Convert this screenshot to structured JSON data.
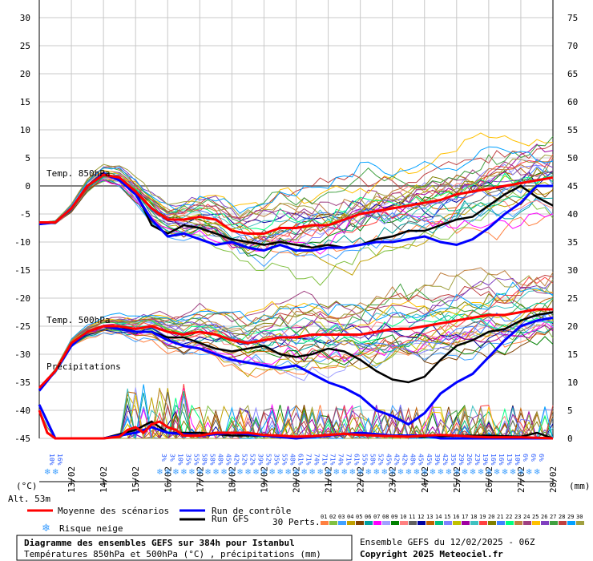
{
  "chart_data": {
    "type": "line",
    "title": "Diagramme des ensembles GEFS sur 384h pour Istanbul",
    "subtitle": "Températures 850hPa et 500hPa (°C) , précipitations (mm)",
    "run_info": "Ensemble GEFS du 12/02/2025 - 06Z",
    "copyright": "Copyright 2025 Meteociel.fr",
    "altitude": "Alt. 53m",
    "left_axis_unit": "(°C)",
    "right_axis_unit": "(mm)",
    "panel_labels": {
      "t850": "Temp. 850hPa",
      "t500": "Temp. 500hPa",
      "precip": "Précipitations"
    },
    "y_left_ticks": [
      "30",
      "25",
      "20",
      "15",
      "10",
      "5",
      "0",
      "-5",
      "-10",
      "-15",
      "-20",
      "-25",
      "-30",
      "-35",
      "-40",
      "-45"
    ],
    "y_right_ticks": [
      "75",
      "70",
      "65",
      "60",
      "55",
      "50",
      "45",
      "40",
      "35",
      "30",
      "25",
      "20",
      "15",
      "10",
      "5",
      "0"
    ],
    "ylim_left": [
      -45,
      30
    ],
    "ylim_right": [
      0,
      75
    ],
    "x_ticks": [
      "13/02",
      "14/02",
      "15/02",
      "16/02",
      "17/02",
      "18/02",
      "19/02",
      "20/02",
      "21/02",
      "22/02",
      "23/02",
      "24/02",
      "25/02",
      "26/02",
      "27/02",
      "28/02"
    ],
    "x_hours_range": [
      0,
      384
    ],
    "snow_risk": [
      {
        "h": 6,
        "pct": "10%"
      },
      {
        "h": 12,
        "pct": "16%"
      },
      {
        "h": 90,
        "pct": "3%"
      },
      {
        "h": 96,
        "pct": "3%"
      },
      {
        "h": 102,
        "pct": "10%"
      },
      {
        "h": 108,
        "pct": "35%"
      },
      {
        "h": 114,
        "pct": "55%"
      },
      {
        "h": 120,
        "pct": "58%"
      },
      {
        "h": 126,
        "pct": "58%"
      },
      {
        "h": 132,
        "pct": "48%"
      },
      {
        "h": 138,
        "pct": "45%"
      },
      {
        "h": 144,
        "pct": "42%"
      },
      {
        "h": 150,
        "pct": "52%"
      },
      {
        "h": 156,
        "pct": "52%"
      },
      {
        "h": 162,
        "pct": "39%"
      },
      {
        "h": 168,
        "pct": "52%"
      },
      {
        "h": 174,
        "pct": "35%"
      },
      {
        "h": 180,
        "pct": "55%"
      },
      {
        "h": 186,
        "pct": "48%"
      },
      {
        "h": 192,
        "pct": "61%"
      },
      {
        "h": 198,
        "pct": "71%"
      },
      {
        "h": 204,
        "pct": "74%"
      },
      {
        "h": 210,
        "pct": "71%"
      },
      {
        "h": 216,
        "pct": "71%"
      },
      {
        "h": 222,
        "pct": "74%"
      },
      {
        "h": 228,
        "pct": "71%"
      },
      {
        "h": 234,
        "pct": "61%"
      },
      {
        "h": 240,
        "pct": "55%"
      },
      {
        "h": 246,
        "pct": "58%"
      },
      {
        "h": 252,
        "pct": "52%"
      },
      {
        "h": 258,
        "pct": "45%"
      },
      {
        "h": 264,
        "pct": "42%"
      },
      {
        "h": 270,
        "pct": "42%"
      },
      {
        "h": 276,
        "pct": "48%"
      },
      {
        "h": 282,
        "pct": "45%"
      },
      {
        "h": 288,
        "pct": "45%"
      },
      {
        "h": 294,
        "pct": "39%"
      },
      {
        "h": 300,
        "pct": "42%"
      },
      {
        "h": 306,
        "pct": "35%"
      },
      {
        "h": 312,
        "pct": "29%"
      },
      {
        "h": 318,
        "pct": "26%"
      },
      {
        "h": 324,
        "pct": "23%"
      },
      {
        "h": 330,
        "pct": "19%"
      },
      {
        "h": 336,
        "pct": "16%"
      },
      {
        "h": 342,
        "pct": "16%"
      },
      {
        "h": 348,
        "pct": "13%"
      },
      {
        "h": 354,
        "pct": "10%"
      },
      {
        "h": 360,
        "pct": "6%"
      },
      {
        "h": 366,
        "pct": "6%"
      },
      {
        "h": 372,
        "pct": "6%"
      }
    ],
    "mean_series": {
      "name": "Moyenne des scénarios",
      "color": "#ff0000",
      "t850": [
        [
          0,
          -6.5
        ],
        [
          12,
          -6.5
        ],
        [
          24,
          -4
        ],
        [
          36,
          0
        ],
        [
          48,
          2
        ],
        [
          60,
          1.5
        ],
        [
          72,
          -1
        ],
        [
          84,
          -4
        ],
        [
          96,
          -6
        ],
        [
          108,
          -6
        ],
        [
          120,
          -5.5
        ],
        [
          132,
          -6
        ],
        [
          144,
          -8
        ],
        [
          156,
          -8.5
        ],
        [
          168,
          -8.5
        ],
        [
          180,
          -7.5
        ],
        [
          192,
          -7.5
        ],
        [
          204,
          -7
        ],
        [
          216,
          -7
        ],
        [
          228,
          -6
        ],
        [
          240,
          -5
        ],
        [
          252,
          -4.5
        ],
        [
          264,
          -4
        ],
        [
          276,
          -3.5
        ],
        [
          288,
          -3
        ],
        [
          300,
          -2.5
        ],
        [
          312,
          -1.5
        ],
        [
          324,
          -1
        ],
        [
          336,
          -0.5
        ],
        [
          348,
          0
        ],
        [
          360,
          0.5
        ],
        [
          372,
          1
        ],
        [
          384,
          1.5
        ]
      ],
      "t500": [
        [
          0,
          -36
        ],
        [
          12,
          -33
        ],
        [
          24,
          -28
        ],
        [
          36,
          -26
        ],
        [
          48,
          -25
        ],
        [
          60,
          -25
        ],
        [
          72,
          -25.5
        ],
        [
          84,
          -25
        ],
        [
          96,
          -26
        ],
        [
          108,
          -26.5
        ],
        [
          120,
          -26
        ],
        [
          132,
          -26.5
        ],
        [
          144,
          -27.5
        ],
        [
          156,
          -28
        ],
        [
          168,
          -27.5
        ],
        [
          180,
          -27
        ],
        [
          192,
          -27
        ],
        [
          204,
          -26.5
        ],
        [
          216,
          -26.5
        ],
        [
          228,
          -26.5
        ],
        [
          240,
          -26.5
        ],
        [
          252,
          -26
        ],
        [
          264,
          -25.5
        ],
        [
          276,
          -25.5
        ],
        [
          288,
          -25
        ],
        [
          300,
          -24.5
        ],
        [
          312,
          -24
        ],
        [
          324,
          -23.5
        ],
        [
          336,
          -23
        ],
        [
          348,
          -23
        ],
        [
          360,
          -22.5
        ],
        [
          372,
          -22
        ],
        [
          384,
          -22
        ]
      ],
      "precip": [
        [
          0,
          5
        ],
        [
          6,
          1
        ],
        [
          12,
          0
        ],
        [
          24,
          0
        ],
        [
          36,
          0
        ],
        [
          48,
          0
        ],
        [
          60,
          0.3
        ],
        [
          66,
          1.5
        ],
        [
          72,
          2
        ],
        [
          78,
          1
        ],
        [
          84,
          2.5
        ],
        [
          90,
          3
        ],
        [
          96,
          2
        ],
        [
          102,
          1.5
        ],
        [
          108,
          0.5
        ],
        [
          120,
          0.5
        ],
        [
          132,
          1
        ],
        [
          144,
          1
        ],
        [
          156,
          1
        ],
        [
          168,
          0.6
        ],
        [
          180,
          0.5
        ],
        [
          192,
          0.3
        ],
        [
          204,
          0.4
        ],
        [
          216,
          0.6
        ],
        [
          228,
          0.8
        ],
        [
          240,
          0.6
        ],
        [
          252,
          0.5
        ],
        [
          264,
          0.4
        ],
        [
          276,
          0.3
        ],
        [
          288,
          0.5
        ],
        [
          300,
          0.6
        ],
        [
          312,
          0.5
        ],
        [
          324,
          0.3
        ],
        [
          336,
          0.2
        ],
        [
          348,
          0.2
        ],
        [
          360,
          0.2
        ],
        [
          372,
          0.1
        ],
        [
          384,
          0
        ]
      ]
    },
    "control_series": {
      "name": "Run de contrôle",
      "color": "#0000ff",
      "t850": [
        [
          0,
          -6.8
        ],
        [
          12,
          -6.5
        ],
        [
          24,
          -4
        ],
        [
          36,
          0
        ],
        [
          48,
          2.2
        ],
        [
          60,
          1
        ],
        [
          72,
          -1.5
        ],
        [
          84,
          -6
        ],
        [
          96,
          -9
        ],
        [
          108,
          -8.5
        ],
        [
          120,
          -9.5
        ],
        [
          132,
          -10.5
        ],
        [
          144,
          -10
        ],
        [
          156,
          -11
        ],
        [
          168,
          -11.5
        ],
        [
          180,
          -10.5
        ],
        [
          192,
          -11.5
        ],
        [
          204,
          -11.5
        ],
        [
          216,
          -11
        ],
        [
          228,
          -11
        ],
        [
          240,
          -10.5
        ],
        [
          252,
          -10
        ],
        [
          264,
          -10
        ],
        [
          276,
          -9.5
        ],
        [
          288,
          -9
        ],
        [
          300,
          -10
        ],
        [
          312,
          -10.5
        ],
        [
          324,
          -9.5
        ],
        [
          336,
          -7.5
        ],
        [
          348,
          -5
        ],
        [
          360,
          -3
        ],
        [
          372,
          0
        ],
        [
          384,
          0
        ]
      ],
      "t500": [
        [
          0,
          -36.5
        ],
        [
          12,
          -33
        ],
        [
          24,
          -28.5
        ],
        [
          36,
          -26
        ],
        [
          48,
          -25
        ],
        [
          60,
          -25.5
        ],
        [
          72,
          -26
        ],
        [
          84,
          -26
        ],
        [
          96,
          -27.5
        ],
        [
          108,
          -28.5
        ],
        [
          120,
          -29
        ],
        [
          132,
          -30
        ],
        [
          144,
          -31
        ],
        [
          156,
          -31.5
        ],
        [
          168,
          -32
        ],
        [
          180,
          -32.5
        ],
        [
          192,
          -32
        ],
        [
          204,
          -33.5
        ],
        [
          216,
          -35
        ],
        [
          228,
          -36
        ],
        [
          240,
          -37.5
        ],
        [
          252,
          -40
        ],
        [
          264,
          -41
        ],
        [
          276,
          -42.5
        ],
        [
          288,
          -40.5
        ],
        [
          300,
          -37
        ],
        [
          312,
          -35
        ],
        [
          324,
          -33.5
        ],
        [
          336,
          -30.5
        ],
        [
          348,
          -27.5
        ],
        [
          360,
          -25
        ],
        [
          372,
          -24
        ],
        [
          384,
          -23.5
        ]
      ],
      "precip": [
        [
          0,
          6
        ],
        [
          12,
          0
        ],
        [
          24,
          0
        ],
        [
          48,
          0
        ],
        [
          72,
          1
        ],
        [
          84,
          2
        ],
        [
          96,
          1
        ],
        [
          120,
          0.5
        ],
        [
          144,
          1
        ],
        [
          168,
          0.5
        ],
        [
          192,
          0
        ],
        [
          216,
          0.5
        ],
        [
          240,
          1
        ],
        [
          264,
          0.5
        ],
        [
          288,
          0.5
        ],
        [
          300,
          0
        ],
        [
          336,
          0
        ],
        [
          384,
          0
        ]
      ]
    },
    "gfs_series": {
      "name": "Run GFS",
      "color": "#000000",
      "t850": [
        [
          0,
          -6.8
        ],
        [
          12,
          -6.5
        ],
        [
          24,
          -4
        ],
        [
          36,
          0
        ],
        [
          48,
          2.2
        ],
        [
          60,
          1
        ],
        [
          72,
          -1
        ],
        [
          84,
          -7
        ],
        [
          96,
          -8.5
        ],
        [
          108,
          -7
        ],
        [
          120,
          -7.5
        ],
        [
          132,
          -8.5
        ],
        [
          144,
          -9.5
        ],
        [
          156,
          -10
        ],
        [
          168,
          -10.5
        ],
        [
          180,
          -10
        ],
        [
          192,
          -10.5
        ],
        [
          204,
          -11
        ],
        [
          216,
          -10.5
        ],
        [
          228,
          -11
        ],
        [
          240,
          -10.5
        ],
        [
          252,
          -9.5
        ],
        [
          264,
          -9
        ],
        [
          276,
          -8
        ],
        [
          288,
          -8
        ],
        [
          300,
          -7
        ],
        [
          312,
          -6
        ],
        [
          324,
          -5.5
        ],
        [
          336,
          -3.5
        ],
        [
          348,
          -1.5
        ],
        [
          360,
          0
        ],
        [
          372,
          -2
        ],
        [
          384,
          -3.5
        ]
      ],
      "t500": [
        [
          0,
          -36.5
        ],
        [
          12,
          -33
        ],
        [
          24,
          -28.5
        ],
        [
          36,
          -26
        ],
        [
          48,
          -25
        ],
        [
          60,
          -25
        ],
        [
          72,
          -26
        ],
        [
          84,
          -26
        ],
        [
          96,
          -27
        ],
        [
          108,
          -27
        ],
        [
          120,
          -28
        ],
        [
          132,
          -29
        ],
        [
          144,
          -29.5
        ],
        [
          156,
          -29
        ],
        [
          168,
          -28.5
        ],
        [
          180,
          -30
        ],
        [
          192,
          -30.5
        ],
        [
          204,
          -30
        ],
        [
          216,
          -29
        ],
        [
          228,
          -29.5
        ],
        [
          240,
          -31
        ],
        [
          252,
          -33
        ],
        [
          264,
          -34.5
        ],
        [
          276,
          -35
        ],
        [
          288,
          -34
        ],
        [
          300,
          -31
        ],
        [
          312,
          -28.5
        ],
        [
          324,
          -27.5
        ],
        [
          336,
          -26
        ],
        [
          348,
          -25.5
        ],
        [
          360,
          -24
        ],
        [
          372,
          -23
        ],
        [
          384,
          -22.5
        ]
      ],
      "precip": [
        [
          0,
          6
        ],
        [
          12,
          0
        ],
        [
          24,
          0
        ],
        [
          48,
          0
        ],
        [
          72,
          1.5
        ],
        [
          84,
          3
        ],
        [
          96,
          1
        ],
        [
          120,
          1
        ],
        [
          144,
          0.5
        ],
        [
          168,
          0.5
        ],
        [
          192,
          0
        ],
        [
          216,
          0.5
        ],
        [
          240,
          1
        ],
        [
          264,
          0.5
        ],
        [
          288,
          0.3
        ],
        [
          312,
          0.5
        ],
        [
          336,
          0.5
        ],
        [
          360,
          0.3
        ],
        [
          372,
          1
        ],
        [
          384,
          0
        ]
      ]
    },
    "ensemble_members": [
      "01",
      "02",
      "03",
      "04",
      "05",
      "06",
      "07",
      "08",
      "09",
      "10",
      "11",
      "12",
      "13",
      "14",
      "15",
      "16",
      "17",
      "18",
      "19",
      "20",
      "21",
      "22",
      "23",
      "24",
      "25",
      "26",
      "27",
      "28",
      "29",
      "30"
    ],
    "ensemble_colors": [
      "#ff8040",
      "#80c040",
      "#40a0ff",
      "#c0a000",
      "#804000",
      "#00a0a0",
      "#ff00ff",
      "#a0a0ff",
      "#008000",
      "#ff8080",
      "#606060",
      "#0000a0",
      "#c06000",
      "#00c080",
      "#8080ff",
      "#c0c000",
      "#a000a0",
      "#40c0c0",
      "#ff4040",
      "#808000",
      "#4080ff",
      "#00ff80",
      "#c08040",
      "#a04080",
      "#ffc000",
      "#8040c0",
      "#40a040",
      "#c04040",
      "#00a0ff",
      "#a0a040"
    ],
    "legend": {
      "mean": "Moyenne des scénarios",
      "control": "Run de contrôle",
      "gfs": "Run GFS",
      "snow": "Risque neige",
      "perts": "30 Perts."
    }
  }
}
